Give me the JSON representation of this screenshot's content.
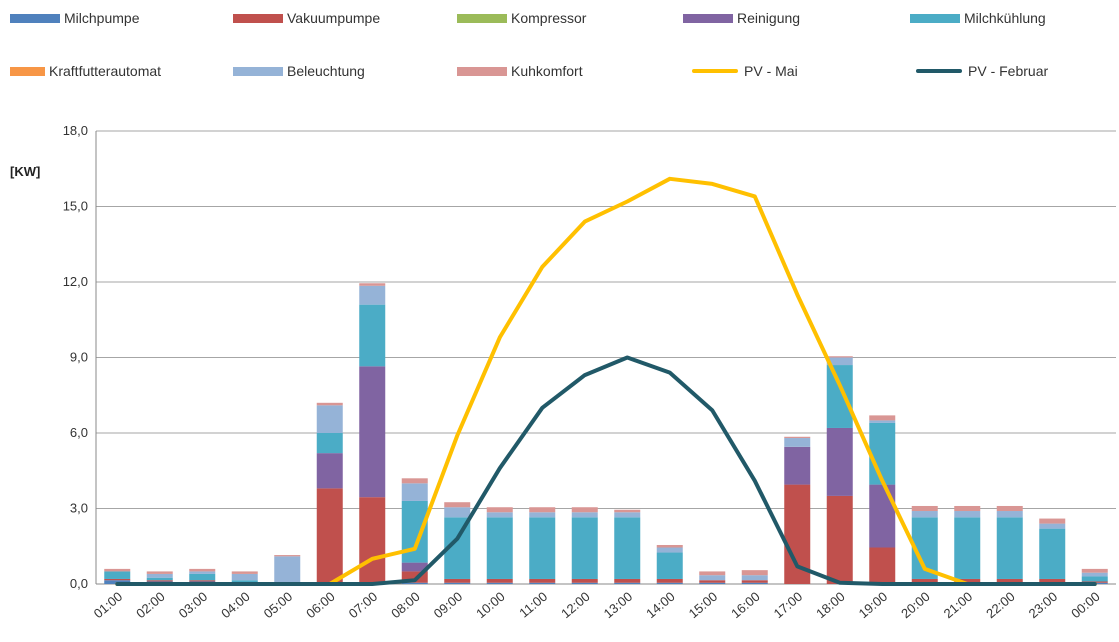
{
  "chart_data": {
    "type": "bar",
    "stacked": true,
    "ylabel": "[KW]",
    "ylim": [
      0,
      18
    ],
    "yticks": [
      "0,0",
      "3,0",
      "6,0",
      "9,0",
      "12,0",
      "15,0",
      "18,0"
    ],
    "grid": true,
    "legend_position": "top",
    "categories": [
      "01:00",
      "02:00",
      "03:00",
      "04:00",
      "05:00",
      "06:00",
      "07:00",
      "08:00",
      "09:00",
      "10:00",
      "11:00",
      "12:00",
      "13:00",
      "14:00",
      "15:00",
      "16:00",
      "17:00",
      "18:00",
      "19:00",
      "20:00",
      "21:00",
      "22:00",
      "23:00",
      "00:00"
    ],
    "series": [
      {
        "name": "Milchpumpe",
        "kind": "bar",
        "color": "#4F81BD",
        "values": [
          0.15,
          0.1,
          0.1,
          0.05,
          0,
          0,
          0,
          0.05,
          0.05,
          0.05,
          0.05,
          0.05,
          0.05,
          0.05,
          0.05,
          0.05,
          0,
          0,
          0,
          0.05,
          0.05,
          0.05,
          0.05,
          0.05
        ]
      },
      {
        "name": "Vakuumpumpe",
        "kind": "bar",
        "color": "#C0504D",
        "values": [
          0.05,
          0.05,
          0.05,
          0,
          0.05,
          3.8,
          3.45,
          0.45,
          0.15,
          0.15,
          0.15,
          0.15,
          0.15,
          0.15,
          0.1,
          0.1,
          3.95,
          3.5,
          1.45,
          0.15,
          0.15,
          0.15,
          0.15,
          0.05
        ]
      },
      {
        "name": "Kompressor",
        "kind": "bar",
        "color": "#9BBB59",
        "values": [
          0,
          0,
          0,
          0,
          0,
          0,
          0,
          0,
          0,
          0,
          0,
          0,
          0,
          0,
          0,
          0,
          0,
          0,
          0,
          0,
          0,
          0,
          0,
          0
        ]
      },
      {
        "name": "Reinigung",
        "kind": "bar",
        "color": "#8064A2",
        "values": [
          0,
          0,
          0,
          0,
          0,
          1.4,
          5.2,
          0.35,
          0,
          0,
          0,
          0,
          0,
          0,
          0,
          0,
          1.5,
          2.7,
          2.5,
          0,
          0,
          0,
          0,
          0
        ]
      },
      {
        "name": "Milchkühlung",
        "kind": "bar",
        "color": "#4BACC6",
        "values": [
          0.3,
          0.1,
          0.25,
          0.1,
          0,
          0.8,
          2.45,
          2.45,
          2.45,
          2.45,
          2.45,
          2.45,
          2.45,
          1.05,
          0,
          0,
          0,
          2.5,
          2.45,
          2.45,
          2.45,
          2.45,
          2.0,
          0.2
        ]
      },
      {
        "name": "Kraftfutterautomat",
        "kind": "bar",
        "color": "#F79646",
        "values": [
          0,
          0,
          0,
          0,
          0,
          0,
          0,
          0,
          0,
          0,
          0,
          0,
          0,
          0,
          0,
          0,
          0,
          0,
          0,
          0,
          0,
          0,
          0,
          0
        ]
      },
      {
        "name": "Beleuchtung",
        "kind": "bar",
        "color": "#95B3D7",
        "values": [
          0,
          0.15,
          0.1,
          0.25,
          1.05,
          1.1,
          0.75,
          0.7,
          0.4,
          0.2,
          0.2,
          0.2,
          0.2,
          0.2,
          0.2,
          0.2,
          0.35,
          0.3,
          0.1,
          0.25,
          0.25,
          0.25,
          0.2,
          0.15
        ]
      },
      {
        "name": "Kuhkomfort",
        "kind": "bar",
        "color": "#D99694",
        "values": [
          0.1,
          0.1,
          0.1,
          0.1,
          0.05,
          0.1,
          0.1,
          0.2,
          0.2,
          0.2,
          0.2,
          0.2,
          0.1,
          0.1,
          0.15,
          0.2,
          0.05,
          0.05,
          0.2,
          0.2,
          0.2,
          0.2,
          0.2,
          0.15
        ]
      },
      {
        "name": "PV - Mai",
        "kind": "line",
        "color": "#FFC000",
        "values": [
          0,
          0,
          0,
          0,
          0,
          0,
          1.0,
          1.4,
          5.9,
          9.8,
          12.6,
          14.4,
          15.2,
          16.1,
          15.9,
          15.4,
          11.5,
          7.9,
          4.1,
          0.6,
          0,
          0,
          0,
          0
        ]
      },
      {
        "name": "PV - Februar",
        "kind": "line",
        "color": "#215968",
        "values": [
          0,
          0,
          0,
          0,
          0,
          0,
          0,
          0.15,
          1.8,
          4.6,
          7.0,
          8.3,
          9.0,
          8.4,
          6.9,
          4.1,
          0.7,
          0.05,
          0,
          0,
          0,
          0,
          0,
          0
        ]
      }
    ]
  },
  "legend": {
    "labels": [
      "Milchpumpe",
      "Vakuumpumpe",
      "Kompressor",
      "Reinigung",
      "Milchkühlung",
      "Kraftfutterautomat",
      "Beleuchtung",
      "Kuhkomfort",
      "PV - Mai",
      "PV - Februar"
    ]
  }
}
